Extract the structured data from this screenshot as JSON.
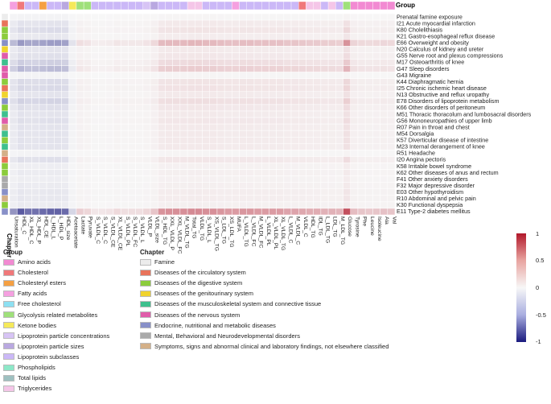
{
  "top_annotation_label": "Group",
  "left_annotation_label": "Chapter",
  "group_legend": {
    "title": "Group",
    "items": [
      {
        "name": "Amino acids",
        "color": "#f28ad2"
      },
      {
        "name": "Cholesterol",
        "color": "#f0787a"
      },
      {
        "name": "Cholesteryl esters",
        "color": "#f5a043"
      },
      {
        "name": "Fatty acids",
        "color": "#f5a0e0"
      },
      {
        "name": "Free cholesterol",
        "color": "#8de0f2"
      },
      {
        "name": "Glycolysis related metabolites",
        "color": "#9fe07a"
      },
      {
        "name": "Ketone bodies",
        "color": "#f5e95a"
      },
      {
        "name": "Lipoprotein particle concentrations",
        "color": "#d7c4f5"
      },
      {
        "name": "Lipoprotein particle sizes",
        "color": "#b9a8e0"
      },
      {
        "name": "Lipoprotein subclasses",
        "color": "#cbb8f7"
      },
      {
        "name": "Phospholipids",
        "color": "#8de8c8"
      },
      {
        "name": "Total lipids",
        "color": "#9ec0c0"
      },
      {
        "name": "Triglycerides",
        "color": "#f5c6e8"
      }
    ]
  },
  "chapter_legend": {
    "title": "Chapter",
    "items": [
      {
        "name": "Famine",
        "color": "#ececec"
      },
      {
        "name": "Diseases of the circulatory system",
        "color": "#e8735a"
      },
      {
        "name": "Diseases of the digestive system",
        "color": "#8ccc3c"
      },
      {
        "name": "Diseases of the genitourinary system",
        "color": "#f0d32e"
      },
      {
        "name": "Diseases of the musculoskeletal system and connective tissue",
        "color": "#3ec08e"
      },
      {
        "name": "Diseases of the nervous system",
        "color": "#e05caa"
      },
      {
        "name": "Endocrine, nutritional and metabolic diseases",
        "color": "#8890c8"
      },
      {
        "name": "Mental, Behavioral and Neurodevelopmental disorders",
        "color": "#aaaaaa"
      },
      {
        "name": "Symptoms, signs and abnormal clinical and laboratory findings, not elsewhere classified",
        "color": "#d4b088"
      }
    ]
  },
  "colorbar": {
    "max_label": "1",
    "p05_label": "0.5",
    "zero_label": "0",
    "m05_label": "-0.5",
    "min_label": "-1"
  },
  "chart_data": {
    "type": "heatmap",
    "value_range": [
      -1,
      1
    ],
    "rows": [
      {
        "label": "Prenatal famine exposure",
        "chapter": "Famine",
        "profile": 0.02
      },
      {
        "label": "I21 Acute myocardial infarction",
        "chapter": "Diseases of the circulatory system",
        "profile": 0.1
      },
      {
        "label": "K80 Cholelithiasis",
        "chapter": "Diseases of the digestive system",
        "profile": 0.14
      },
      {
        "label": "K21 Gastro-esophageal reflux disease",
        "chapter": "Diseases of the digestive system",
        "profile": 0.08
      },
      {
        "label": "E66 Overweight and obesity",
        "chapter": "Endocrine, nutritional and metabolic diseases",
        "profile": 0.45
      },
      {
        "label": "N20 Calculus of kidney and ureter",
        "chapter": "Diseases of the genitourinary system",
        "profile": 0.1
      },
      {
        "label": "G55 Nerve root and plexus compressions",
        "chapter": "Diseases of the nervous system",
        "profile": 0.12
      },
      {
        "label": "M17 Osteoarthritis of knee",
        "chapter": "Diseases of the musculoskeletal system and connective tissue",
        "profile": 0.2
      },
      {
        "label": "G47 Sleep disorders",
        "chapter": "Diseases of the nervous system",
        "profile": 0.3
      },
      {
        "label": "G43 Migraine",
        "chapter": "Diseases of the nervous system",
        "profile": 0.02
      },
      {
        "label": "K44 Diaphragmatic hernia",
        "chapter": "Diseases of the digestive system",
        "profile": 0.14
      },
      {
        "label": "I25 Chronic ischemic heart disease",
        "chapter": "Diseases of the circulatory system",
        "profile": 0.15
      },
      {
        "label": "N13 Obstructive and reflux uropathy",
        "chapter": "Diseases of the genitourinary system",
        "profile": 0.1
      },
      {
        "label": "E78 Disorders of lipoprotein metabolism",
        "chapter": "Endocrine, nutritional and metabolic diseases",
        "profile": 0.18
      },
      {
        "label": "K66 Other disorders of peritoneum",
        "chapter": "Diseases of the digestive system",
        "profile": 0.12
      },
      {
        "label": "M51 Thoracic thoracolum and lumbosacral disorders",
        "chapter": "Diseases of the musculoskeletal system and connective tissue",
        "profile": 0.1
      },
      {
        "label": "G56 Mononeuropathies of upper limb",
        "chapter": "Diseases of the nervous system",
        "profile": 0.12
      },
      {
        "label": "R07 Pain in throat and chest",
        "chapter": "Symptoms, signs and abnormal clinical and laboratory findings, not elsewhere classified",
        "profile": 0.1
      },
      {
        "label": "M54 Dorsalgia",
        "chapter": "Diseases of the musculoskeletal system and connective tissue",
        "profile": 0.1
      },
      {
        "label": "K57 Diverticular disease of intestine",
        "chapter": "Diseases of the digestive system",
        "profile": 0.1
      },
      {
        "label": "M23 Internal derangement of knee",
        "chapter": "Diseases of the musculoskeletal system and connective tissue",
        "profile": 0.1
      },
      {
        "label": "R51 Headache",
        "chapter": "Symptoms, signs and abnormal clinical and laboratory findings, not elsewhere classified",
        "profile": 0.02
      },
      {
        "label": "I20 Angina pectoris",
        "chapter": "Diseases of the circulatory system",
        "profile": 0.12
      },
      {
        "label": "K58 Irritable bowel syndrome",
        "chapter": "Diseases of the digestive system",
        "profile": 0.05
      },
      {
        "label": "K62 Other diseases of anus and rectum",
        "chapter": "Diseases of the digestive system",
        "profile": 0.06
      },
      {
        "label": "F41 Other anxiety disorders",
        "chapter": "Mental, Behavioral and Neurodevelopmental disorders",
        "profile": 0.05
      },
      {
        "label": "F32 Major depressive disorder",
        "chapter": "Mental, Behavioral and Neurodevelopmental disorders",
        "profile": 0.06
      },
      {
        "label": "E03 Other hypothyroidism",
        "chapter": "Endocrine, nutritional and metabolic diseases",
        "profile": 0.08
      },
      {
        "label": "R10 Abdominal and pelvic pain",
        "chapter": "Symptoms, signs and abnormal clinical and laboratory findings, not elsewhere classified",
        "profile": 0.08
      },
      {
        "label": "K30 Functional dyspepsia",
        "chapter": "Diseases of the digestive system",
        "profile": 0.06
      },
      {
        "label": "E11 Type-2 diabetes mellitus",
        "chapter": "Endocrine, nutritional and metabolic diseases",
        "profile": 0.75
      }
    ],
    "columns": [
      {
        "label": "Unsaturation",
        "group": "Fatty acids",
        "effect": -0.6
      },
      {
        "label": "HDL_C",
        "group": "Cholesterol",
        "effect": -0.95
      },
      {
        "label": "XL_HDL_C",
        "group": "Lipoprotein subclasses",
        "effect": -0.8
      },
      {
        "label": "XL_HDL_P",
        "group": "Lipoprotein subclasses",
        "effect": -0.8
      },
      {
        "label": "HDL_CE",
        "group": "Cholesteryl esters",
        "effect": -0.85
      },
      {
        "label": "L_HDL_L",
        "group": "Lipoprotein subclasses",
        "effect": -0.9
      },
      {
        "label": "L_HDL_P",
        "group": "Lipoprotein subclasses",
        "effect": -0.9
      },
      {
        "label": "HDL_size",
        "group": "Lipoprotein particle sizes",
        "effect": -0.85
      },
      {
        "label": "Acetoacetate",
        "group": "Ketone bodies",
        "effect": -0.2
      },
      {
        "label": "Lactate",
        "group": "Glycolysis related metabolites",
        "effect": 0.25
      },
      {
        "label": "Pyruvate",
        "group": "Glycolysis related metabolites",
        "effect": 0.2
      },
      {
        "label": "S_VLDL_C",
        "group": "Lipoprotein subclasses",
        "effect": 0.1
      },
      {
        "label": "S_VLDL_C",
        "group": "Lipoprotein subclasses",
        "effect": 0.1
      },
      {
        "label": "S_VLDL_CE",
        "group": "Lipoprotein subclasses",
        "effect": 0.12
      },
      {
        "label": "XL_VLDL_CE",
        "group": "Lipoprotein subclasses",
        "effect": 0.18
      },
      {
        "label": "S_VLDL_PL",
        "group": "Lipoprotein subclasses",
        "effect": 0.15
      },
      {
        "label": "S_VLDL_FC",
        "group": "Lipoprotein subclasses",
        "effect": 0.15
      },
      {
        "label": "S_VLDL_L",
        "group": "Lipoprotein subclasses",
        "effect": 0.15
      },
      {
        "label": "VLDL_P",
        "group": "Lipoprotein particle concentrations",
        "effect": 0.2
      },
      {
        "label": "VLDL_size",
        "group": "Lipoprotein particle sizes",
        "effect": 0.3
      },
      {
        "label": "S_HDL_TG",
        "group": "Lipoprotein subclasses",
        "effect": 0.6
      },
      {
        "label": "XXL_VLDL_P",
        "group": "Lipoprotein subclasses",
        "effect": 0.62
      },
      {
        "label": "XXL_VLDL_FC",
        "group": "Lipoprotein subclasses",
        "effect": 0.62
      },
      {
        "label": "M_VLDL_TG",
        "group": "Lipoprotein subclasses",
        "effect": 0.62
      },
      {
        "label": "Total_TG",
        "group": "Triglycerides",
        "effect": 0.65
      },
      {
        "label": "VLDL_TG",
        "group": "Triglycerides",
        "effect": 0.65
      },
      {
        "label": "S_VLDL_L",
        "group": "Lipoprotein subclasses",
        "effect": 0.62
      },
      {
        "label": "XS_VLDL_TG",
        "group": "Lipoprotein subclasses",
        "effect": 0.62
      },
      {
        "label": "S_LDL_TG",
        "group": "Lipoprotein subclasses",
        "effect": 0.58
      },
      {
        "label": "XS_LDL_TG",
        "group": "Lipoprotein subclasses",
        "effect": 0.55
      },
      {
        "label": "MUFA",
        "group": "Fatty acids",
        "effect": 0.55
      },
      {
        "label": "L_VLDL_TG",
        "group": "Lipoprotein subclasses",
        "effect": 0.58
      },
      {
        "label": "L_VLDL_FC",
        "group": "Lipoprotein subclasses",
        "effect": 0.58
      },
      {
        "label": "M_VLDL_FC",
        "group": "Lipoprotein subclasses",
        "effect": 0.55
      },
      {
        "label": "L_VLDL_PL",
        "group": "Lipoprotein subclasses",
        "effect": 0.55
      },
      {
        "label": "XL_VLDL_PL",
        "group": "Lipoprotein subclasses",
        "effect": 0.55
      },
      {
        "label": "XL_VLDL_TG",
        "group": "Lipoprotein subclasses",
        "effect": 0.55
      },
      {
        "label": "L_VLDL_C",
        "group": "Lipoprotein subclasses",
        "effect": 0.5
      },
      {
        "label": "M_VLDL_C",
        "group": "Lipoprotein subclasses",
        "effect": 0.5
      },
      {
        "label": "VLDL_C",
        "group": "Cholesterol",
        "effect": 0.48
      },
      {
        "label": "HDL_TG",
        "group": "Triglycerides",
        "effect": 0.45
      },
      {
        "label": "IDL_TG",
        "group": "Triglycerides",
        "effect": 0.45
      },
      {
        "label": "L_LDL_TG",
        "group": "Lipoprotein subclasses",
        "effect": 0.42
      },
      {
        "label": "LDL_TG",
        "group": "Triglycerides",
        "effect": 0.42
      },
      {
        "label": "M_LDL_TG",
        "group": "Lipoprotein subclasses",
        "effect": 0.4
      },
      {
        "label": "Glucose",
        "group": "Glycolysis related metabolites",
        "effect": 1.0
      },
      {
        "label": "Tyrosine",
        "group": "Amino acids",
        "effect": 0.35
      },
      {
        "label": "Phe",
        "group": "Amino acids",
        "effect": 0.3
      },
      {
        "label": "Leucine",
        "group": "Amino acids",
        "effect": 0.28
      },
      {
        "label": "Isoleucine",
        "group": "Amino acids",
        "effect": 0.3
      },
      {
        "label": "Ala",
        "group": "Amino acids",
        "effect": 0.32
      },
      {
        "label": "Val",
        "group": "Amino acids",
        "effect": 0.3
      }
    ]
  }
}
